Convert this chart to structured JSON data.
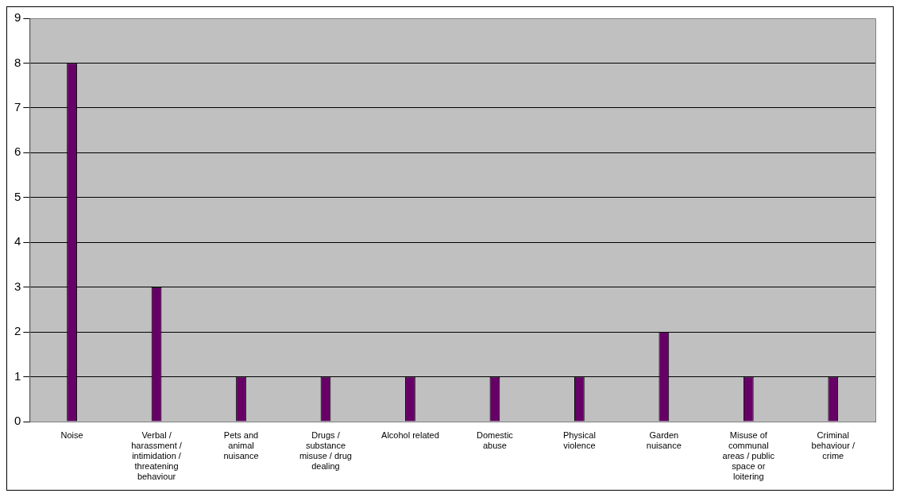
{
  "chart_data": {
    "type": "bar",
    "categories": [
      "Noise",
      "Verbal / harassment / intimidation / threatening behaviour",
      "Pets and animal nuisance",
      "Drugs / substance misuse / drug dealing",
      "Alcohol related",
      "Domestic abuse",
      "Physical violence",
      "Garden nuisance",
      "Misuse of communal areas / public space or loitering",
      "Criminal behaviour / crime"
    ],
    "values": [
      8,
      3,
      1,
      1,
      1,
      1,
      1,
      2,
      1,
      1
    ],
    "color": "#660066",
    "ylim": [
      0,
      9
    ],
    "yticks": [
      0,
      1,
      2,
      3,
      4,
      5,
      6,
      7,
      8,
      9
    ],
    "grid": "y",
    "legend": false
  }
}
